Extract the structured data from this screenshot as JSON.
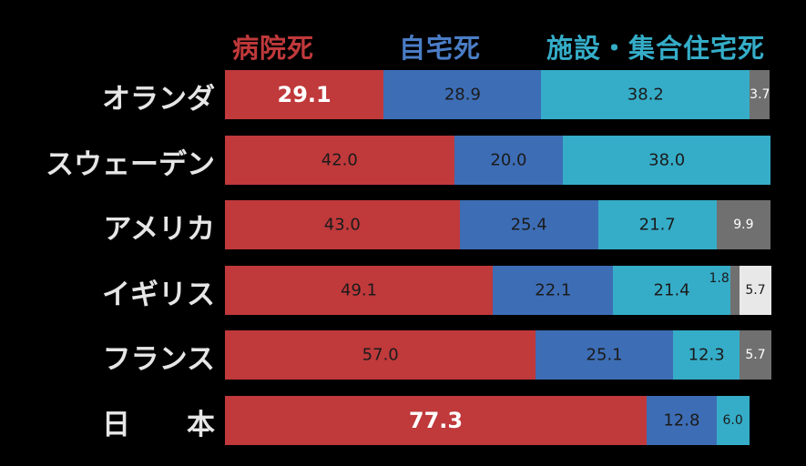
{
  "chart_data": {
    "type": "bar",
    "orientation": "horizontal",
    "stacked": true,
    "categories": [
      "オランダ",
      "スウェーデン",
      "アメリカ",
      "イギリス",
      "フランス",
      "日　　本"
    ],
    "series": [
      {
        "name": "病院死",
        "color": "#c0393b",
        "values": [
          29.1,
          42.0,
          43.0,
          49.1,
          57.0,
          77.3
        ]
      },
      {
        "name": "自宅死",
        "color": "#3d6db5",
        "values": [
          28.9,
          20.0,
          25.4,
          22.1,
          25.1,
          12.8
        ]
      },
      {
        "name": "施設・集合住宅死",
        "color": "#35adc8",
        "values": [
          38.2,
          38.0,
          21.7,
          21.4,
          12.3,
          6.0
        ]
      },
      {
        "name": "",
        "color": "#707070",
        "values": [
          3.7,
          0,
          9.9,
          1.8,
          5.7,
          0
        ]
      },
      {
        "name": "",
        "color": "#e8e8e8",
        "values": [
          0,
          0,
          0,
          5.7,
          0,
          0
        ]
      }
    ],
    "labels": [
      [
        "29.1",
        "28.9",
        "38.2",
        "3.7",
        ""
      ],
      [
        "42.0",
        "20.0",
        "38.0",
        "",
        ""
      ],
      [
        "43.0",
        "25.4",
        "21.7",
        "9.9",
        ""
      ],
      [
        "49.1",
        "22.1",
        "21.4",
        "1.8",
        "5.7"
      ],
      [
        "57.0",
        "25.1",
        "12.3",
        "5.7",
        ""
      ],
      [
        "77.3",
        "12.8",
        "6.0",
        "",
        ""
      ]
    ],
    "xlim": [
      0,
      100
    ],
    "grid": false,
    "legend": "top"
  }
}
